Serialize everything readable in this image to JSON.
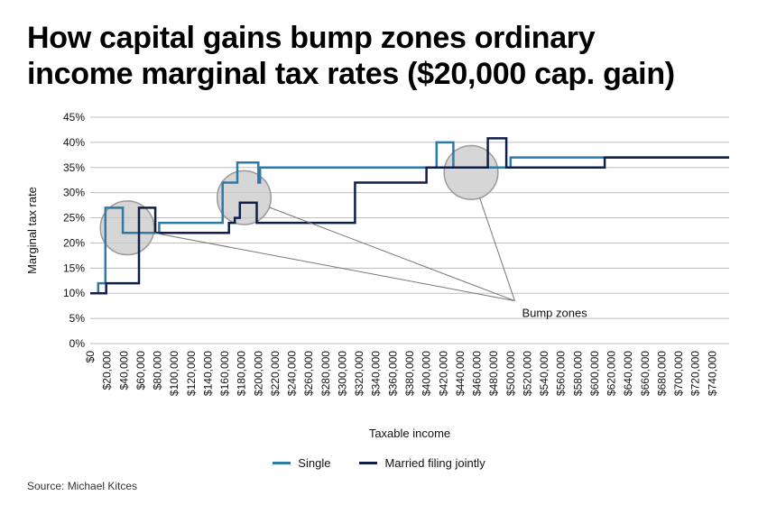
{
  "header": {
    "title_line1": "How capital gains bump zones ordinary",
    "title_line2": "income marginal tax rates ($20,000 cap. gain)"
  },
  "source": "Source: Michael Kitces",
  "annotation": "Bump zones",
  "colors": {
    "single": "#2b7aa8",
    "married": "#0f1f4a",
    "grid": "#bdbdbd",
    "bubble_fill": "#c8c8c8",
    "bubble_stroke": "#9a9a9a"
  },
  "chart_data": {
    "type": "line",
    "xlabel": "Taxable income",
    "ylabel": "Marginal tax rate",
    "xlim": [
      0,
      760000
    ],
    "ylim": [
      0,
      45
    ],
    "grid": true,
    "legend_position": "bottom",
    "y_ticks": [
      "0%",
      "5%",
      "10%",
      "15%",
      "20%",
      "25%",
      "30%",
      "35%",
      "40%",
      "45%"
    ],
    "x_ticks": [
      "$0",
      "$20,000",
      "$40,000",
      "$60,000",
      "$80,000",
      "$100,000",
      "$120,000",
      "$140,000",
      "$160,000",
      "$180,000",
      "$200,000",
      "$220,000",
      "$240,000",
      "$260,000",
      "$280,000",
      "$300,000",
      "$320,000",
      "$340,000",
      "$360,000",
      "$380,000",
      "$400,000",
      "$420,000",
      "$440,000",
      "$460,000",
      "$480,000",
      "$500,000",
      "$520,000",
      "$540,000",
      "$560,000",
      "$580,000",
      "$600,000",
      "$620,000",
      "$640,000",
      "$660,000",
      "$680,000",
      "$700,000",
      "$720,000",
      "$740,000"
    ],
    "series": [
      {
        "name": "Single",
        "step_points": [
          [
            0,
            10
          ],
          [
            9500,
            10
          ],
          [
            9500,
            12
          ],
          [
            18000,
            12
          ],
          [
            18000,
            27
          ],
          [
            38700,
            27
          ],
          [
            38700,
            22
          ],
          [
            82000,
            22
          ],
          [
            82000,
            24
          ],
          [
            157500,
            24
          ],
          [
            157500,
            32
          ],
          [
            175000,
            32
          ],
          [
            175000,
            36
          ],
          [
            200000,
            36
          ],
          [
            200000,
            32
          ],
          [
            202000,
            32
          ],
          [
            202000,
            35
          ],
          [
            412000,
            35
          ],
          [
            412000,
            40
          ],
          [
            432000,
            40
          ],
          [
            432000,
            35
          ],
          [
            500000,
            35
          ],
          [
            500000,
            37
          ],
          [
            760000,
            37
          ]
        ]
      },
      {
        "name": "Married filing jointly",
        "step_points": [
          [
            0,
            10
          ],
          [
            19000,
            10
          ],
          [
            19000,
            12
          ],
          [
            58000,
            12
          ],
          [
            58000,
            27
          ],
          [
            77400,
            27
          ],
          [
            77400,
            22
          ],
          [
            165000,
            22
          ],
          [
            165000,
            24
          ],
          [
            172000,
            24
          ],
          [
            172000,
            25
          ],
          [
            178000,
            25
          ],
          [
            178000,
            28
          ],
          [
            198000,
            28
          ],
          [
            198000,
            24
          ],
          [
            315000,
            24
          ],
          [
            315000,
            32
          ],
          [
            400000,
            32
          ],
          [
            400000,
            35
          ],
          [
            473000,
            35
          ],
          [
            473000,
            40.8
          ],
          [
            495000,
            40.8
          ],
          [
            495000,
            35
          ],
          [
            612000,
            35
          ],
          [
            612000,
            37
          ],
          [
            760000,
            37
          ]
        ]
      }
    ],
    "annotations": [
      {
        "text": "Bump zones",
        "x": 505000,
        "y": 8.5
      }
    ],
    "bump_zones": [
      {
        "x": 44000,
        "y": 23,
        "r_income": 32000
      },
      {
        "x": 183000,
        "y": 29,
        "r_income": 32000
      },
      {
        "x": 453000,
        "y": 34,
        "r_income": 32000
      }
    ]
  }
}
